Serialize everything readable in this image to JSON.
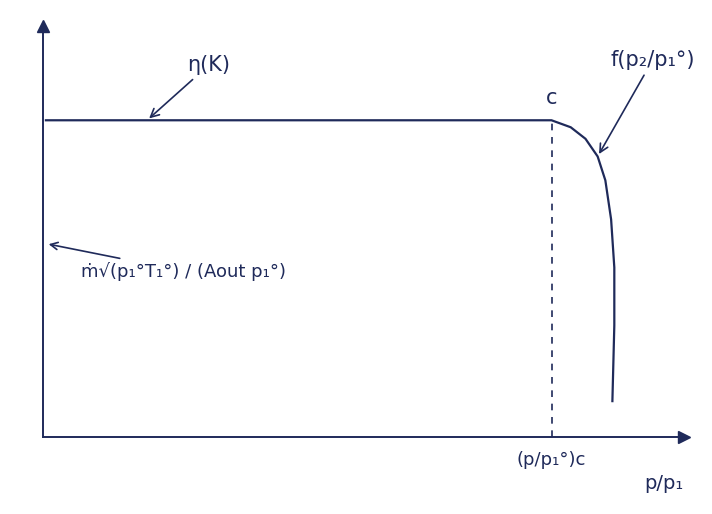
{
  "chart_data": {
    "type": "line",
    "x": [
      0.05,
      7.94,
      8.24,
      8.47,
      8.66,
      8.78,
      8.87,
      8.92,
      8.92,
      8.89
    ],
    "values": [
      7.7,
      7.7,
      7.53,
      7.25,
      6.82,
      6.24,
      5.29,
      4.12,
      2.71,
      0.87
    ],
    "color": "#1f2a5a",
    "x_label": "p/p₁",
    "annotations": [
      "η(K)",
      "c",
      "f(p₂/p₁°)",
      "ṁ√(p₁°T₁°) / (Aout p₁°)"
    ],
    "xlim": [
      0,
      10
    ],
    "ylim": [
      0,
      10
    ],
    "xticks": [
      {
        "value": 7.94,
        "label": "(p/p₁°)c"
      }
    ],
    "yticks": [],
    "tick_labels": "x",
    "grid": false
  }
}
